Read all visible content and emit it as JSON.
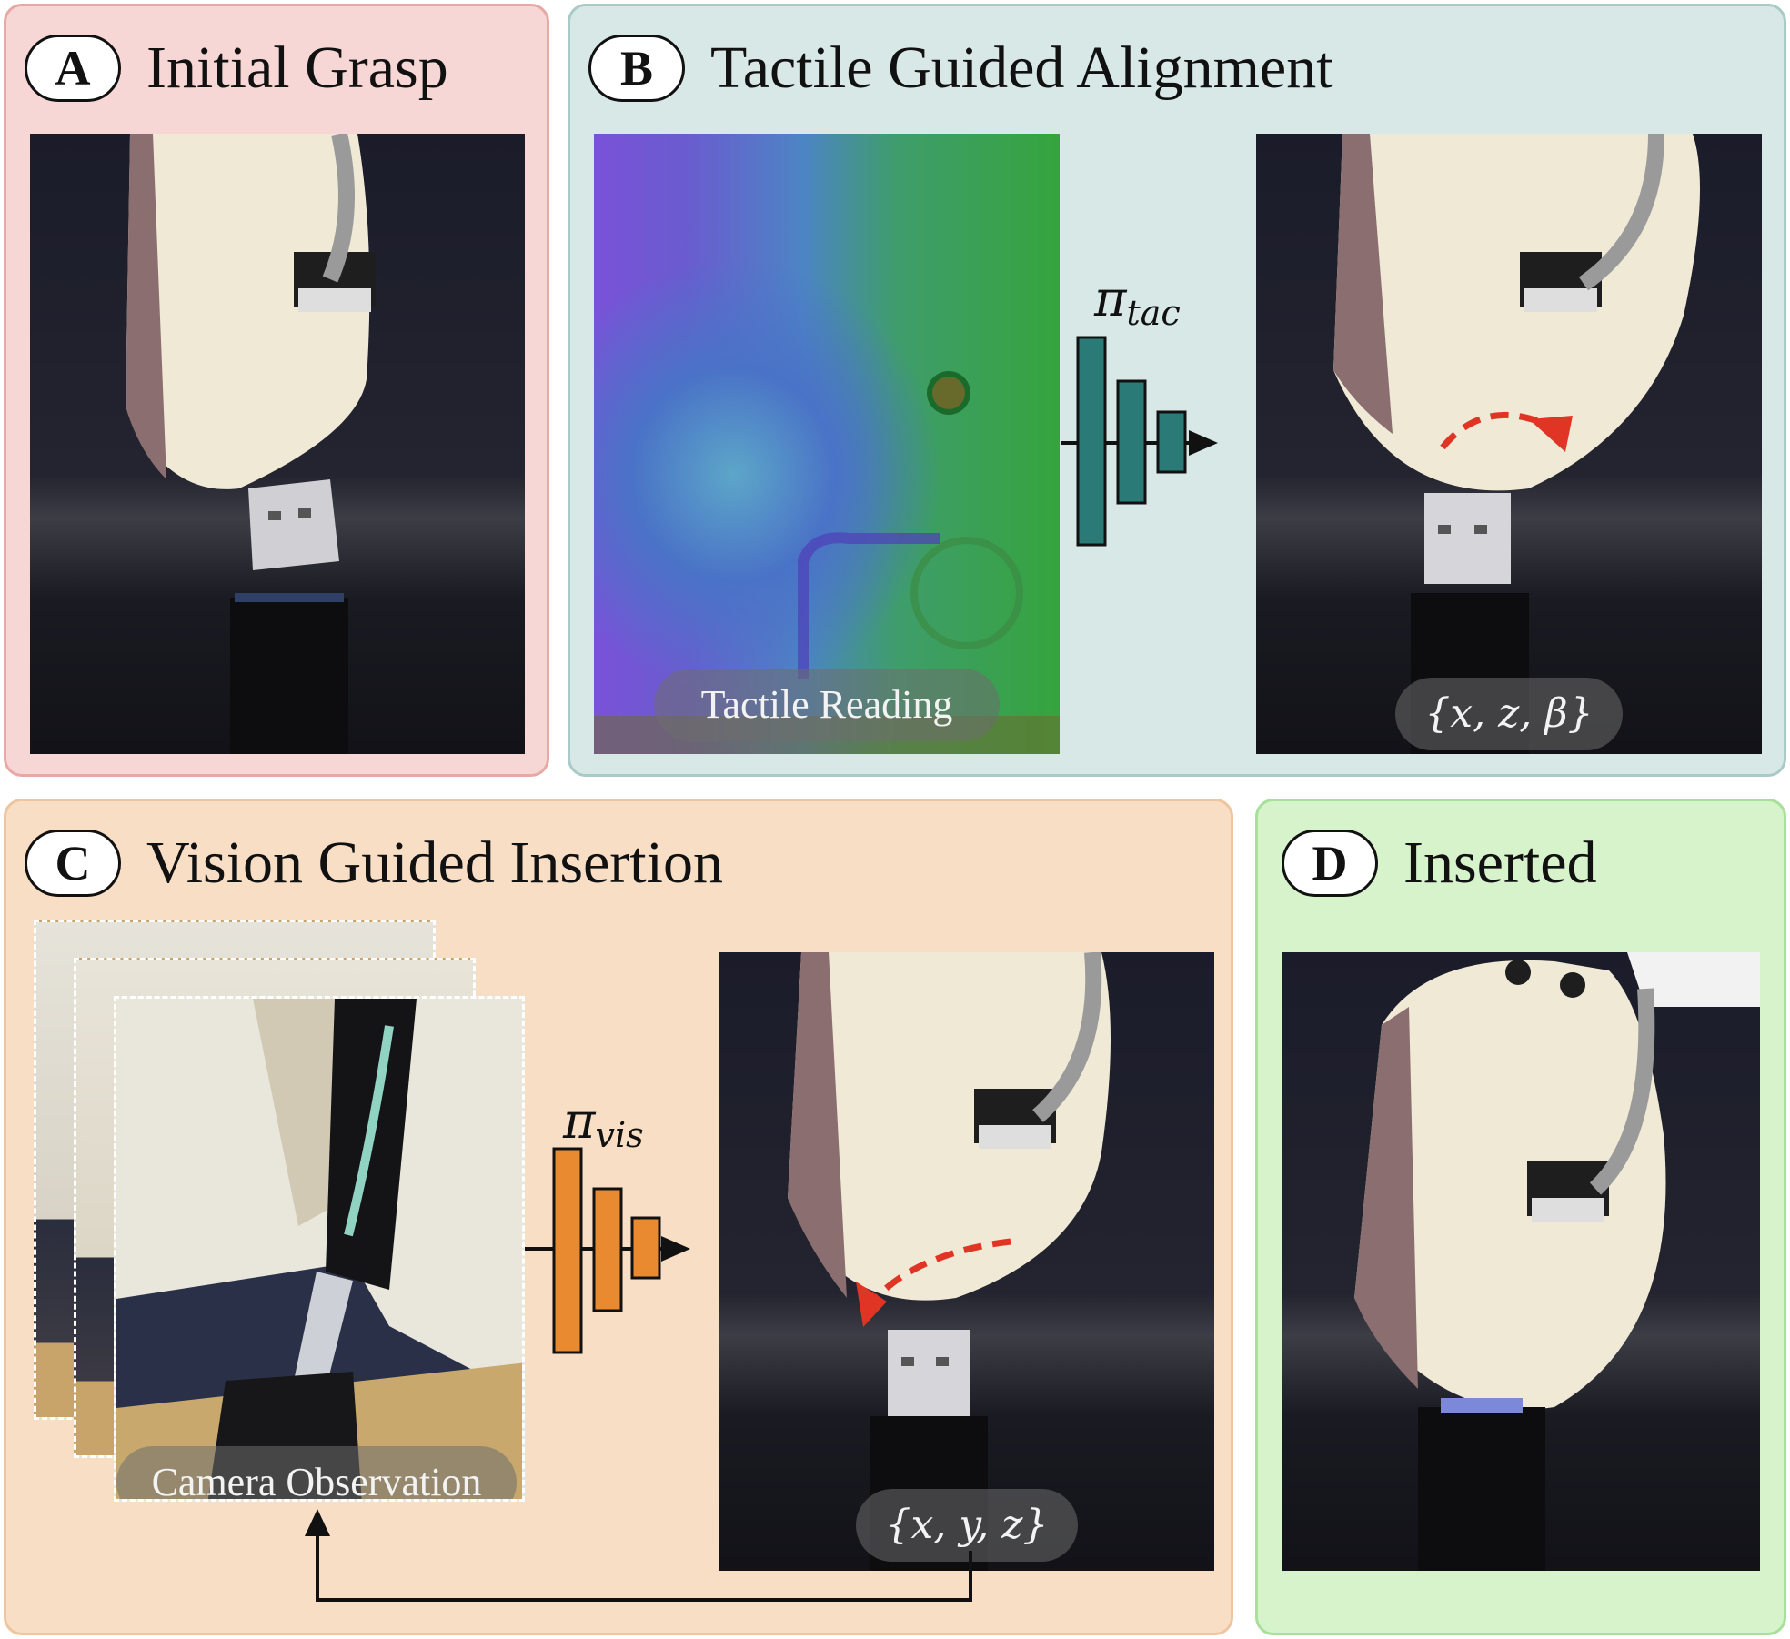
{
  "panels": {
    "a": {
      "letter": "A",
      "title": "Initial Grasp"
    },
    "b": {
      "letter": "B",
      "title": "Tactile Guided Alignment",
      "tactile_label": "Tactile Reading",
      "policy_symbol": "π",
      "policy_sub": "tac",
      "output_label": "{x, z, β}"
    },
    "c": {
      "letter": "C",
      "title": "Vision Guided Insertion",
      "camera_label": "Camera Observation",
      "policy_symbol": "π",
      "policy_sub": "vis",
      "output_label": "{x, y, z}"
    },
    "d": {
      "letter": "D",
      "title": "Inserted"
    }
  },
  "colors": {
    "panel_a": "#f7d7d5",
    "panel_b": "#d8e8e6",
    "panel_c": "#f9dec6",
    "panel_d": "#d6f3cc",
    "tactile_net": "#2a7b78",
    "vision_net": "#e98a30",
    "motion_arrow": "#e03524"
  }
}
